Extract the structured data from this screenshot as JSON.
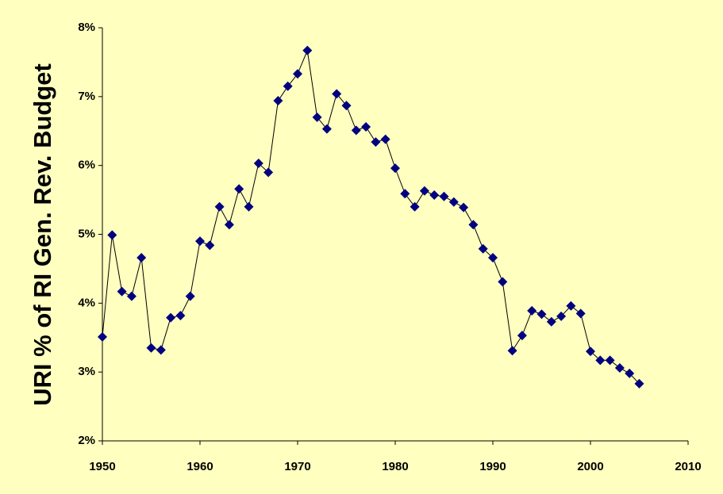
{
  "chart_data": {
    "type": "line",
    "y_label": "URI % of RI Gen. Rev. Budget",
    "x": [
      1950,
      1951,
      1952,
      1953,
      1954,
      1955,
      1956,
      1957,
      1958,
      1959,
      1960,
      1961,
      1962,
      1963,
      1964,
      1965,
      1966,
      1967,
      1968,
      1969,
      1970,
      1971,
      1972,
      1973,
      1974,
      1975,
      1976,
      1977,
      1978,
      1979,
      1980,
      1981,
      1982,
      1983,
      1984,
      1985,
      1986,
      1987,
      1988,
      1989,
      1990,
      1991,
      1992,
      1993,
      1994,
      1995,
      1996,
      1997,
      1998,
      1999,
      2000,
      2001,
      2002,
      2003,
      2004,
      2005
    ],
    "values": [
      3.51,
      4.99,
      4.17,
      4.1,
      4.66,
      3.35,
      3.32,
      3.79,
      3.82,
      4.1,
      4.9,
      4.84,
      5.4,
      5.14,
      5.66,
      5.4,
      6.03,
      5.9,
      6.94,
      7.15,
      7.33,
      7.67,
      6.7,
      6.53,
      7.04,
      6.87,
      6.51,
      6.56,
      6.34,
      6.38,
      5.96,
      5.59,
      5.4,
      5.63,
      5.57,
      5.55,
      5.47,
      5.39,
      5.14,
      4.79,
      4.66,
      4.31,
      3.31,
      3.53,
      3.89,
      3.84,
      3.73,
      3.81,
      3.96,
      3.85,
      3.3,
      3.17,
      3.17,
      3.06,
      2.98,
      2.83
    ],
    "line_color": "#000000",
    "marker_color": "#000080",
    "xlim": [
      1950,
      2010
    ],
    "xticks": [
      1950,
      1960,
      1970,
      1980,
      1990,
      2000,
      2010
    ],
    "ylim": [
      2,
      8
    ],
    "yticks": [
      {
        "value": 2,
        "label": "2%"
      },
      {
        "value": 3,
        "label": "3%"
      },
      {
        "value": 4,
        "label": "4%"
      },
      {
        "value": 5,
        "label": "5%"
      },
      {
        "value": 6,
        "label": "6%"
      },
      {
        "value": 7,
        "label": "7%"
      },
      {
        "value": 8,
        "label": "8%"
      }
    ],
    "grid": false
  }
}
